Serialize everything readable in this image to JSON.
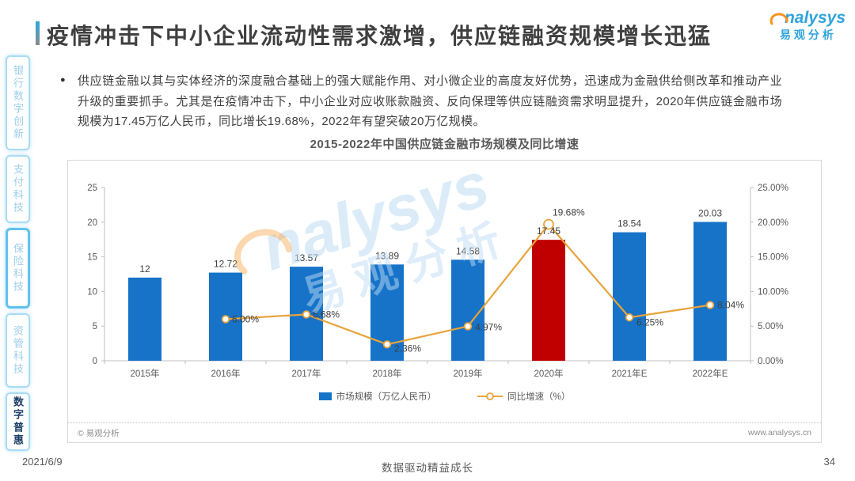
{
  "header": {
    "title": "疫情冲击下中小企业流动性需求激增，供应链融资规模增长迅猛",
    "logo": {
      "en": "nalysys",
      "cn": "易观分析"
    }
  },
  "sidebar": {
    "items": [
      {
        "label": "银行数字创新",
        "active": false,
        "emphasized": false
      },
      {
        "label": "支付科技",
        "active": false,
        "emphasized": false
      },
      {
        "label": "保险科技",
        "active": false,
        "emphasized": true
      },
      {
        "label": "资管科技",
        "active": false,
        "emphasized": false
      },
      {
        "label": "数字普惠",
        "active": true,
        "emphasized": false
      }
    ]
  },
  "body": {
    "bullet_text": "供应链金融以其与实体经济的深度融合基础上的强大赋能作用、对小微企业的高度友好优势，迅速成为金融供给侧改革和推动产业升级的重要抓手。尤其是在疫情冲击下，中小企业对应收账款融资、反向保理等供应链融资需求明显提升，2020年供应链金融市场规模为17.45万亿人民币，同比增长19.68%，2022年有望突破20万亿规模。"
  },
  "chart_data": {
    "type": "bar+line",
    "title": "2015-2022年中国供应链金融市场规模及同比增速",
    "categories": [
      "2015年",
      "2016年",
      "2017年",
      "2018年",
      "2019年",
      "2020年",
      "2021年E",
      "2022年E"
    ],
    "series": [
      {
        "name": "市场规模（万亿人民币）",
        "type": "bar",
        "axis": "left",
        "values": [
          12,
          12.72,
          13.57,
          13.89,
          14.58,
          17.45,
          18.54,
          20.03
        ],
        "labels": [
          "12",
          "12.72",
          "13.57",
          "13.89",
          "14.58",
          "17.45",
          "18.54",
          "20.03"
        ],
        "color": "#1673C8",
        "highlight_index": 5,
        "highlight_color": "#C00000"
      },
      {
        "name": "同比增速（%）",
        "type": "line",
        "axis": "right",
        "values": [
          null,
          6.0,
          6.68,
          2.36,
          4.97,
          19.68,
          6.25,
          8.04
        ],
        "labels": [
          "",
          "6.00%",
          "6.68%",
          "2.36%",
          "4.97%",
          "19.68%",
          "6.25%",
          "8.04%"
        ],
        "color": "#E8A33C"
      }
    ],
    "left_axis": {
      "min": 0,
      "max": 25,
      "ticks": [
        "0",
        "5",
        "10",
        "15",
        "20",
        "25"
      ]
    },
    "right_axis": {
      "min": 0,
      "max": 25,
      "ticks": [
        "0.00%",
        "5.00%",
        "10.00%",
        "15.00%",
        "20.00%",
        "25.00%"
      ]
    },
    "grid": false,
    "legend_position": "bottom"
  },
  "chart_footer": {
    "copyright": "© 易观分析",
    "website": "www.analysys.cn"
  },
  "watermark": {
    "en": "nalysys",
    "cn": "易观分析"
  },
  "page": {
    "date": "2021/6/9",
    "tagline": "数据驱动精益成长",
    "page_number": "34"
  }
}
